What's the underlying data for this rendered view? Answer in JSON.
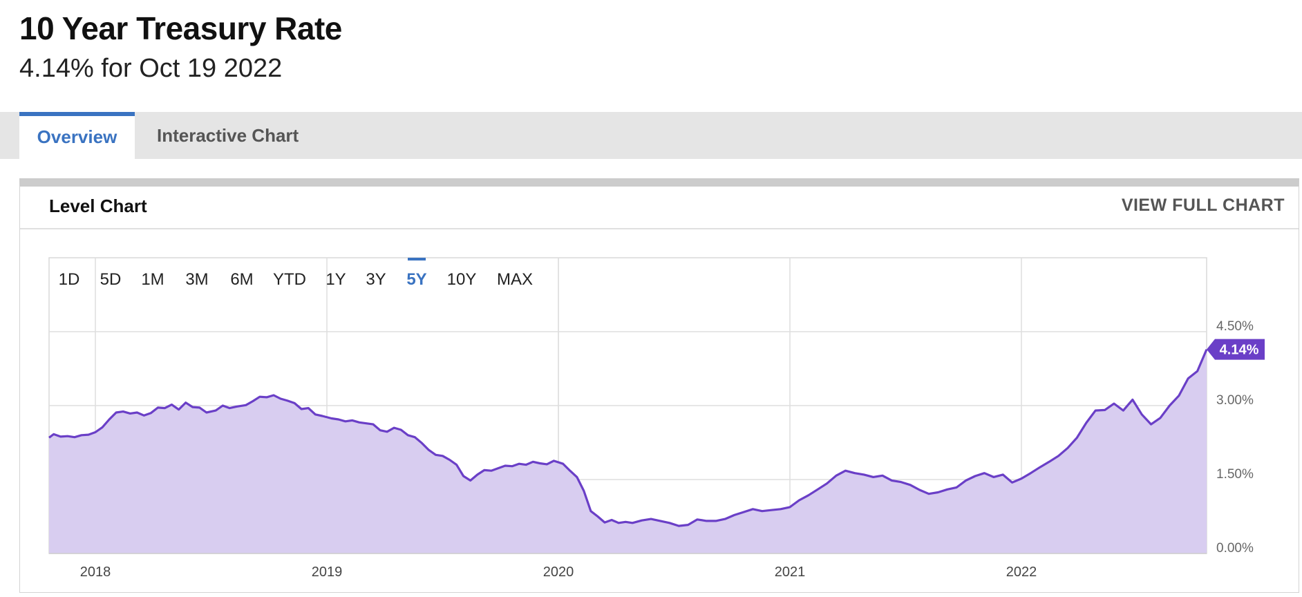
{
  "header": {
    "title": "10 Year Treasury Rate",
    "subtitle": "4.14% for Oct 19 2022"
  },
  "tabs": [
    {
      "label": "Overview",
      "active": true
    },
    {
      "label": "Interactive Chart",
      "active": false
    }
  ],
  "panel": {
    "title": "Level Chart",
    "view_full_label": "VIEW FULL CHART"
  },
  "range_buttons": [
    "1D",
    "5D",
    "1M",
    "3M",
    "6M",
    "YTD",
    "1Y",
    "3Y",
    "5Y",
    "10Y",
    "MAX"
  ],
  "selected_range": "5Y",
  "colors": {
    "accent": "#3a73c1",
    "line": "#6a3fc7",
    "fill": "#d8cdf0",
    "current_badge": "#6a3fc7",
    "grid": "#dedede"
  },
  "chart_data": {
    "type": "area",
    "title": "10 Year Treasury Rate",
    "xlabel": "",
    "ylabel": "",
    "x_range": [
      2017.8,
      2022.8
    ],
    "ylim": [
      0,
      5.1
    ],
    "y_ticks": [
      0,
      1.5,
      3,
      4.5
    ],
    "y_tick_labels": [
      "0.00%",
      "1.50%",
      "3.00%",
      "4.50%"
    ],
    "x_ticks": [
      2018,
      2019,
      2020,
      2021,
      2022
    ],
    "x_tick_labels": [
      "2018",
      "2019",
      "2020",
      "2021",
      "2022"
    ],
    "grid": true,
    "current_value": 4.14,
    "current_label": "4.14%",
    "series": [
      {
        "x": [
          2017.8,
          2017.82,
          2017.85,
          2017.88,
          2017.91,
          2017.94,
          2017.97,
          2018.0,
          2018.03,
          2018.06,
          2018.09,
          2018.12,
          2018.15,
          2018.18,
          2018.21,
          2018.24,
          2018.27,
          2018.3,
          2018.33,
          2018.36,
          2018.39,
          2018.42,
          2018.45,
          2018.48,
          2018.52,
          2018.55,
          2018.58,
          2018.61,
          2018.65,
          2018.68,
          2018.71,
          2018.74,
          2018.77,
          2018.8,
          2018.83,
          2018.86,
          2018.89,
          2018.92,
          2018.95,
          2018.98,
          2019.02,
          2019.05,
          2019.08,
          2019.11,
          2019.14,
          2019.17,
          2019.2,
          2019.23,
          2019.26,
          2019.29,
          2019.32,
          2019.35,
          2019.38,
          2019.41,
          2019.44,
          2019.47,
          2019.5,
          2019.53,
          2019.56,
          2019.59,
          2019.62,
          2019.65,
          2019.68,
          2019.71,
          2019.74,
          2019.77,
          2019.8,
          2019.83,
          2019.86,
          2019.89,
          2019.92,
          2019.95,
          2019.98,
          2020.02,
          2020.05,
          2020.08,
          2020.11,
          2020.14,
          2020.17,
          2020.2,
          2020.23,
          2020.26,
          2020.29,
          2020.32,
          2020.36,
          2020.4,
          2020.44,
          2020.48,
          2020.52,
          2020.56,
          2020.6,
          2020.64,
          2020.68,
          2020.72,
          2020.76,
          2020.8,
          2020.84,
          2020.88,
          2020.92,
          2020.96,
          2021.0,
          2021.04,
          2021.08,
          2021.12,
          2021.16,
          2021.2,
          2021.24,
          2021.28,
          2021.32,
          2021.36,
          2021.4,
          2021.44,
          2021.48,
          2021.52,
          2021.56,
          2021.6,
          2021.64,
          2021.68,
          2021.72,
          2021.76,
          2021.8,
          2021.84,
          2021.88,
          2021.92,
          2021.96,
          2022.0,
          2022.04,
          2022.08,
          2022.12,
          2022.16,
          2022.2,
          2022.24,
          2022.28,
          2022.32,
          2022.36,
          2022.4,
          2022.44,
          2022.48,
          2022.52,
          2022.56,
          2022.6,
          2022.64,
          2022.68,
          2022.72,
          2022.76,
          2022.8
        ],
        "y": [
          2.35,
          2.42,
          2.37,
          2.38,
          2.36,
          2.4,
          2.41,
          2.46,
          2.56,
          2.72,
          2.86,
          2.88,
          2.84,
          2.86,
          2.8,
          2.85,
          2.96,
          2.95,
          3.02,
          2.92,
          3.06,
          2.97,
          2.96,
          2.86,
          2.9,
          3.0,
          2.95,
          2.98,
          3.01,
          3.09,
          3.18,
          3.17,
          3.21,
          3.14,
          3.1,
          3.05,
          2.93,
          2.95,
          2.82,
          2.79,
          2.74,
          2.72,
          2.68,
          2.7,
          2.66,
          2.64,
          2.62,
          2.5,
          2.47,
          2.55,
          2.51,
          2.4,
          2.36,
          2.24,
          2.1,
          2.0,
          1.98,
          1.9,
          1.8,
          1.57,
          1.48,
          1.6,
          1.69,
          1.68,
          1.73,
          1.78,
          1.77,
          1.82,
          1.8,
          1.86,
          1.83,
          1.81,
          1.88,
          1.82,
          1.68,
          1.55,
          1.27,
          0.86,
          0.75,
          0.63,
          0.68,
          0.62,
          0.64,
          0.62,
          0.67,
          0.7,
          0.66,
          0.62,
          0.56,
          0.58,
          0.69,
          0.66,
          0.66,
          0.7,
          0.78,
          0.84,
          0.9,
          0.86,
          0.88,
          0.9,
          0.94,
          1.08,
          1.18,
          1.3,
          1.42,
          1.58,
          1.68,
          1.63,
          1.6,
          1.55,
          1.58,
          1.48,
          1.45,
          1.39,
          1.29,
          1.21,
          1.24,
          1.3,
          1.34,
          1.48,
          1.57,
          1.63,
          1.55,
          1.6,
          1.44,
          1.52,
          1.63,
          1.75,
          1.86,
          1.98,
          2.14,
          2.35,
          2.65,
          2.9,
          2.91,
          3.04,
          2.9,
          3.12,
          2.82,
          2.62,
          2.75,
          3.0,
          3.2,
          3.55,
          3.7,
          4.14
        ]
      }
    ]
  }
}
